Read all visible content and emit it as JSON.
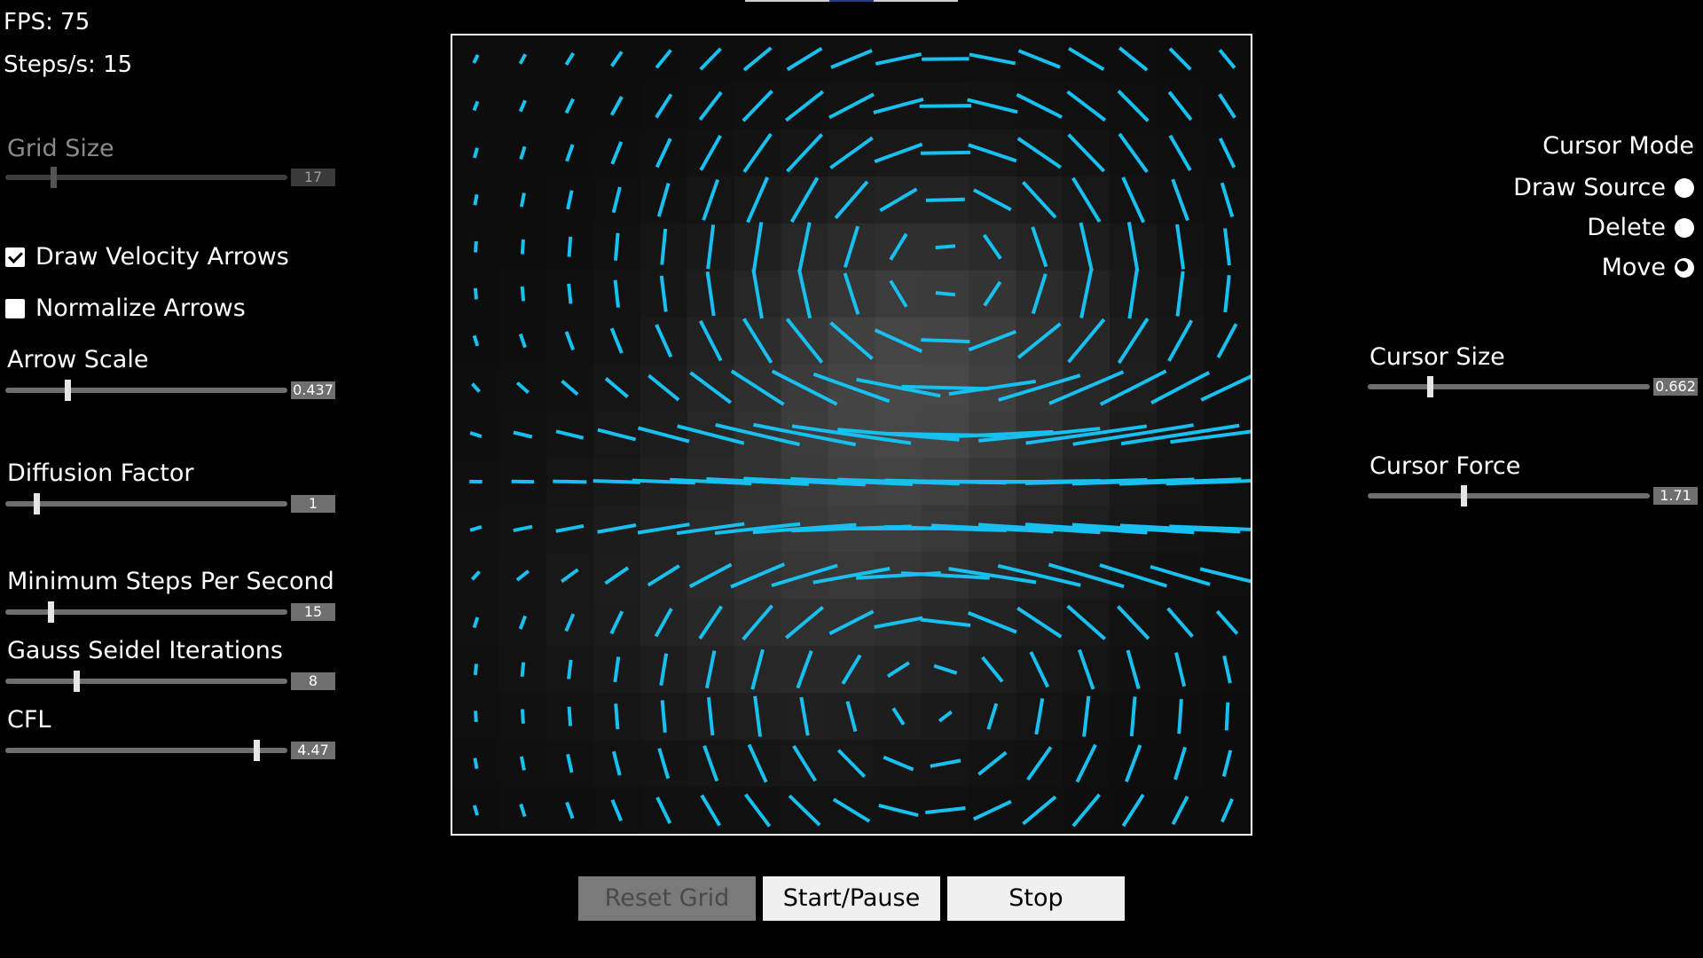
{
  "stats": {
    "fps": "FPS: 75",
    "steps": "Steps/s: 15"
  },
  "controls": {
    "grid_size": {
      "label": "Grid Size",
      "value": "17",
      "fraction": 0.17,
      "disabled": true
    },
    "draw_velocity_arrows": {
      "label": "Draw Velocity Arrows",
      "checked": true
    },
    "normalize_arrows": {
      "label": "Normalize Arrows",
      "checked": false
    },
    "arrow_scale": {
      "label": "Arrow Scale",
      "value": "0.437",
      "fraction": 0.22
    },
    "diffusion_factor": {
      "label": "Diffusion Factor",
      "value": "1",
      "fraction": 0.11
    },
    "min_steps": {
      "label": "Minimum Steps Per Second",
      "value": "15",
      "fraction": 0.16
    },
    "gauss_seidel": {
      "label": "Gauss Seidel Iterations",
      "value": "8",
      "fraction": 0.25
    },
    "cfl": {
      "label": "CFL",
      "value": "4.47",
      "fraction": 0.89
    }
  },
  "cursor": {
    "mode_title": "Cursor Mode",
    "modes": [
      {
        "label": "Draw Source",
        "selected": false
      },
      {
        "label": "Delete",
        "selected": false
      },
      {
        "label": "Move",
        "selected": true
      }
    ],
    "size": {
      "label": "Cursor Size",
      "value": "0.662",
      "fraction": 0.22
    },
    "force": {
      "label": "Cursor Force",
      "value": "1.71",
      "fraction": 0.34
    }
  },
  "buttons": {
    "reset": {
      "label": "Reset Grid",
      "disabled": true
    },
    "start_pause": {
      "label": "Start/Pause"
    },
    "stop": {
      "label": "Stop"
    }
  },
  "colors": {
    "arrow": "#18c0f0",
    "background": "#000000",
    "accent_topbar": "#2a3a8a"
  },
  "icons": {
    "checkbox": "checkmark-icon",
    "radio": "radio-dot-icon"
  }
}
